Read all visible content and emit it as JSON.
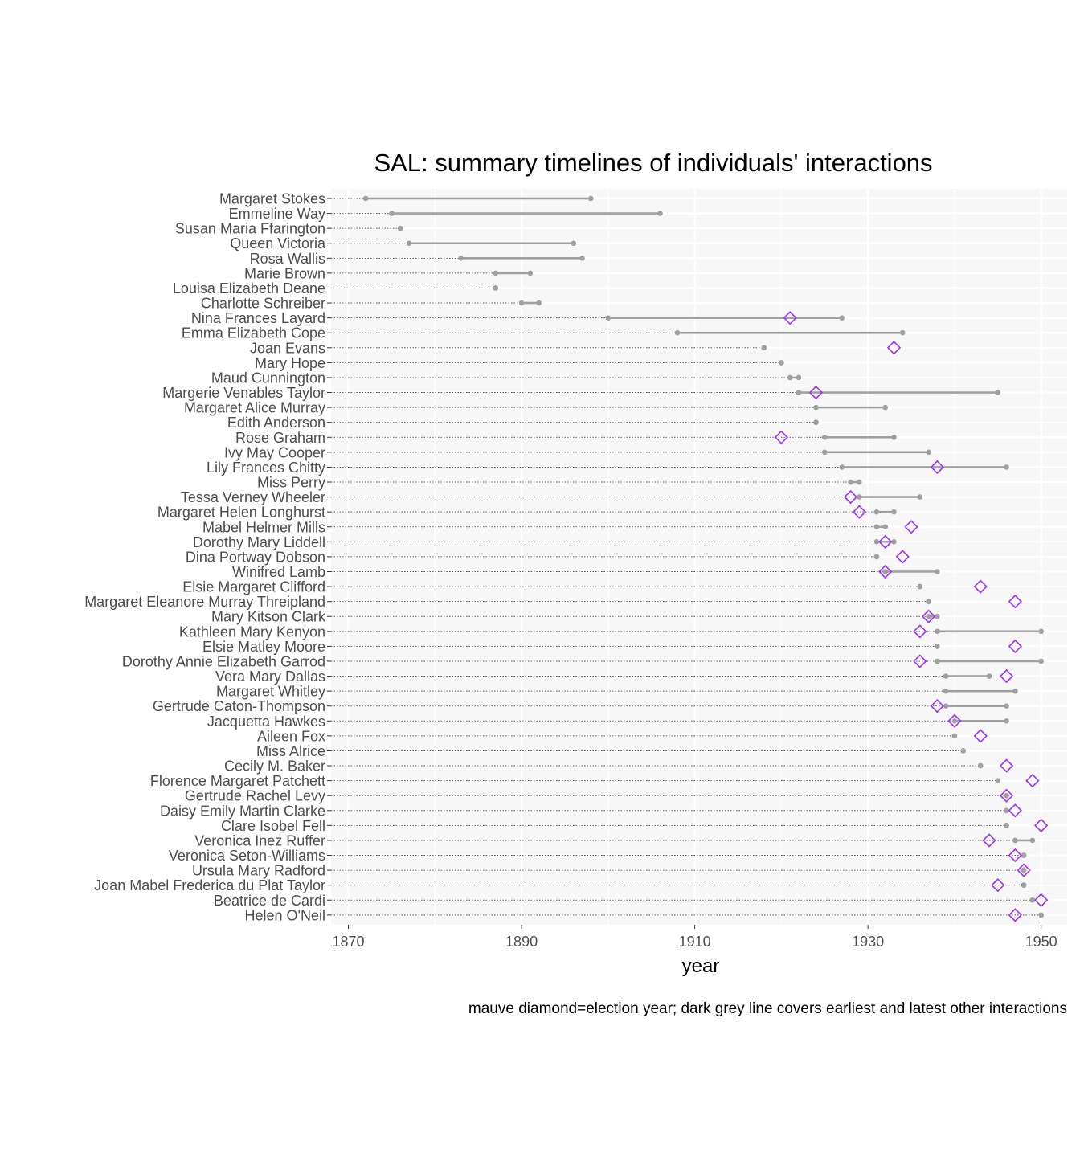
{
  "chart_data": {
    "type": "dot-range timeline",
    "title": "SAL: summary timelines of individuals' interactions",
    "xlabel": "year",
    "caption": "mauve diamond=election year; dark grey line covers earliest and latest other interactions",
    "xlim": [
      1868,
      1953
    ],
    "x_ticks": [
      1870,
      1890,
      1910,
      1930,
      1950
    ],
    "grid": true,
    "colors": {
      "range": "#a0a0a0",
      "election": "#9b30ff",
      "panel": "#f7f7f7",
      "grid": "#ffffff"
    },
    "series": [
      {
        "name": "Margaret Stokes",
        "min": 1872,
        "max": 1898,
        "election": null
      },
      {
        "name": "Emmeline Way",
        "min": 1875,
        "max": 1906,
        "election": null
      },
      {
        "name": "Susan Maria Ffarington",
        "min": 1876,
        "max": 1876,
        "election": null
      },
      {
        "name": "Queen Victoria",
        "min": 1877,
        "max": 1896,
        "election": null
      },
      {
        "name": "Rosa Wallis",
        "min": 1883,
        "max": 1897,
        "election": null
      },
      {
        "name": "Marie Brown",
        "min": 1887,
        "max": 1891,
        "election": null
      },
      {
        "name": "Louisa Elizabeth Deane",
        "min": 1887,
        "max": 1887,
        "election": null
      },
      {
        "name": "Charlotte Schreiber",
        "min": 1890,
        "max": 1892,
        "election": null
      },
      {
        "name": "Nina Frances Layard",
        "min": 1900,
        "max": 1927,
        "election": 1921
      },
      {
        "name": "Emma Elizabeth Cope",
        "min": 1908,
        "max": 1934,
        "election": null
      },
      {
        "name": "Joan Evans",
        "min": 1918,
        "max": 1918,
        "election": 1933
      },
      {
        "name": "Mary Hope",
        "min": 1920,
        "max": 1920,
        "election": null
      },
      {
        "name": "Maud Cunnington",
        "min": 1921,
        "max": 1922,
        "election": null
      },
      {
        "name": "Margerie Venables Taylor",
        "min": 1922,
        "max": 1945,
        "election": 1924
      },
      {
        "name": "Margaret Alice Murray",
        "min": 1924,
        "max": 1932,
        "election": null
      },
      {
        "name": "Edith Anderson",
        "min": 1924,
        "max": 1924,
        "election": null
      },
      {
        "name": "Rose Graham",
        "min": 1925,
        "max": 1933,
        "election": 1920
      },
      {
        "name": "Ivy May Cooper",
        "min": 1925,
        "max": 1937,
        "election": null
      },
      {
        "name": "Lily Frances Chitty",
        "min": 1927,
        "max": 1946,
        "election": 1938
      },
      {
        "name": "Miss Perry",
        "min": 1928,
        "max": 1929,
        "election": null
      },
      {
        "name": "Tessa Verney Wheeler",
        "min": 1929,
        "max": 1936,
        "election": 1928
      },
      {
        "name": "Margaret Helen Longhurst",
        "min": 1931,
        "max": 1933,
        "election": 1929
      },
      {
        "name": "Mabel Helmer Mills",
        "min": 1931,
        "max": 1932,
        "election": 1935
      },
      {
        "name": "Dorothy Mary Liddell",
        "min": 1931,
        "max": 1933,
        "election": 1932
      },
      {
        "name": "Dina Portway Dobson",
        "min": 1931,
        "max": 1931,
        "election": 1934
      },
      {
        "name": "Winifred Lamb",
        "min": 1932,
        "max": 1938,
        "election": 1932
      },
      {
        "name": "Elsie Margaret Clifford",
        "min": 1936,
        "max": 1936,
        "election": 1943
      },
      {
        "name": "Margaret Eleanore Murray Threipland",
        "min": 1937,
        "max": 1937,
        "election": 1947
      },
      {
        "name": "Mary Kitson Clark",
        "min": 1937,
        "max": 1938,
        "election": 1937
      },
      {
        "name": "Kathleen Mary Kenyon",
        "min": 1938,
        "max": 1950,
        "election": 1936
      },
      {
        "name": "Elsie Matley Moore",
        "min": 1938,
        "max": 1938,
        "election": 1947
      },
      {
        "name": "Dorothy Annie Elizabeth Garrod",
        "min": 1938,
        "max": 1950,
        "election": 1936
      },
      {
        "name": "Vera Mary Dallas",
        "min": 1939,
        "max": 1944,
        "election": 1946
      },
      {
        "name": "Margaret Whitley",
        "min": 1939,
        "max": 1947,
        "election": null
      },
      {
        "name": "Gertrude Caton-Thompson",
        "min": 1939,
        "max": 1946,
        "election": 1938
      },
      {
        "name": "Jacquetta Hawkes",
        "min": 1940,
        "max": 1946,
        "election": 1940
      },
      {
        "name": "Aileen Fox",
        "min": 1940,
        "max": 1940,
        "election": 1943
      },
      {
        "name": "Miss Alrice",
        "min": 1941,
        "max": 1941,
        "election": null
      },
      {
        "name": "Cecily M. Baker",
        "min": 1943,
        "max": 1943,
        "election": 1946
      },
      {
        "name": "Florence Margaret Patchett",
        "min": 1945,
        "max": 1945,
        "election": 1949
      },
      {
        "name": "Gertrude Rachel Levy",
        "min": 1946,
        "max": 1946,
        "election": 1946
      },
      {
        "name": "Daisy Emily Martin Clarke",
        "min": 1946,
        "max": 1946,
        "election": 1947
      },
      {
        "name": "Clare Isobel Fell",
        "min": 1946,
        "max": 1946,
        "election": 1950
      },
      {
        "name": "Veronica Inez Ruffer",
        "min": 1947,
        "max": 1949,
        "election": 1944
      },
      {
        "name": "Veronica Seton-Williams",
        "min": 1948,
        "max": 1948,
        "election": 1947
      },
      {
        "name": "Ursula Mary Radford",
        "min": 1948,
        "max": 1948,
        "election": 1948
      },
      {
        "name": "Joan Mabel Frederica du Plat Taylor",
        "min": 1948,
        "max": 1948,
        "election": 1945
      },
      {
        "name": "Beatrice de Cardi",
        "min": 1949,
        "max": 1949,
        "election": 1950
      },
      {
        "name": "Helen O'Neil",
        "min": 1950,
        "max": 1950,
        "election": 1947
      }
    ]
  }
}
